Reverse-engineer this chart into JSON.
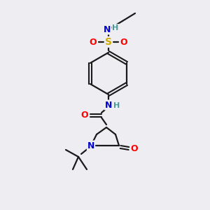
{
  "background_color": "#eeeef2",
  "bond_color": "#1a1a1a",
  "atom_colors": {
    "O": "#ff0000",
    "N": "#0000cc",
    "S": "#ccaa00",
    "H_N": "#4a9a9a",
    "C": "#1a1a1a"
  },
  "figsize": [
    3.0,
    3.0
  ],
  "dpi": 100
}
